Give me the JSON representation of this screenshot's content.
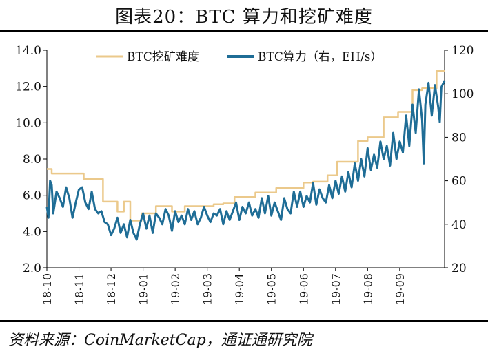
{
  "header": {
    "title": "图表20：BTC 算力和挖矿难度"
  },
  "footer": {
    "source": "资料来源：CoinMarketCap，通证通研究院"
  },
  "chart_data": {
    "type": "line",
    "xlabel": "",
    "ylabel_left": "",
    "ylabel_right": "",
    "x_ticks": [
      "18-10",
      "18-11",
      "18-12",
      "19-01",
      "19-02",
      "19-03",
      "19-04",
      "19-05",
      "19-06",
      "19-07",
      "19-08",
      "19-09"
    ],
    "x_range_months": [
      0,
      12.4
    ],
    "ylim_left": [
      2.0,
      14.0
    ],
    "yticks_left": [
      "2.0",
      "4.0",
      "6.0",
      "8.0",
      "10.0",
      "12.0",
      "14.0"
    ],
    "ylim_right": [
      20,
      120
    ],
    "yticks_right": [
      "20",
      "40",
      "60",
      "80",
      "100",
      "120"
    ],
    "grid": false,
    "legend_position": "top",
    "colors": {
      "difficulty": "#EBC98B",
      "hashrate": "#1F6D96"
    },
    "series": [
      {
        "name": "BTC挖矿难度",
        "axis": "left",
        "step": true,
        "points": [
          [
            0.0,
            7.45
          ],
          [
            0.15,
            7.2
          ],
          [
            1.15,
            6.9
          ],
          [
            1.75,
            5.65
          ],
          [
            2.2,
            5.1
          ],
          [
            2.4,
            5.65
          ],
          [
            2.6,
            4.6
          ],
          [
            2.95,
            5.0
          ],
          [
            3.4,
            5.4
          ],
          [
            3.9,
            5.1
          ],
          [
            4.3,
            5.4
          ],
          [
            5.2,
            5.5
          ],
          [
            5.5,
            5.55
          ],
          [
            5.85,
            5.9
          ],
          [
            6.5,
            6.15
          ],
          [
            7.15,
            6.4
          ],
          [
            8.0,
            6.7
          ],
          [
            8.3,
            6.75
          ],
          [
            8.75,
            7.1
          ],
          [
            9.05,
            7.85
          ],
          [
            9.7,
            9.0
          ],
          [
            10.0,
            9.2
          ],
          [
            10.5,
            10.3
          ],
          [
            10.95,
            10.6
          ],
          [
            11.4,
            11.8
          ],
          [
            11.7,
            11.9
          ],
          [
            12.15,
            12.85
          ],
          [
            12.4,
            12.85
          ]
        ]
      },
      {
        "name": "BTC算力（右，EH/s）",
        "axis": "right",
        "points": [
          [
            0.0,
            48
          ],
          [
            0.05,
            43
          ],
          [
            0.1,
            60
          ],
          [
            0.15,
            58
          ],
          [
            0.2,
            45
          ],
          [
            0.3,
            55
          ],
          [
            0.4,
            52
          ],
          [
            0.5,
            48
          ],
          [
            0.6,
            57
          ],
          [
            0.7,
            52
          ],
          [
            0.8,
            43
          ],
          [
            0.9,
            50
          ],
          [
            1.0,
            56
          ],
          [
            1.1,
            57
          ],
          [
            1.2,
            50
          ],
          [
            1.3,
            47
          ],
          [
            1.4,
            55
          ],
          [
            1.5,
            47
          ],
          [
            1.6,
            45
          ],
          [
            1.7,
            46
          ],
          [
            1.8,
            41
          ],
          [
            1.9,
            40
          ],
          [
            2.0,
            35
          ],
          [
            2.1,
            38
          ],
          [
            2.2,
            43
          ],
          [
            2.3,
            36
          ],
          [
            2.4,
            40
          ],
          [
            2.5,
            34
          ],
          [
            2.6,
            42
          ],
          [
            2.7,
            36
          ],
          [
            2.8,
            33
          ],
          [
            2.9,
            40
          ],
          [
            3.0,
            45
          ],
          [
            3.1,
            38
          ],
          [
            3.2,
            44
          ],
          [
            3.3,
            36
          ],
          [
            3.4,
            45
          ],
          [
            3.5,
            43
          ],
          [
            3.6,
            40
          ],
          [
            3.7,
            47
          ],
          [
            3.8,
            44
          ],
          [
            3.9,
            37
          ],
          [
            4.0,
            46
          ],
          [
            4.1,
            41
          ],
          [
            4.2,
            44
          ],
          [
            4.3,
            40
          ],
          [
            4.4,
            47
          ],
          [
            4.5,
            42
          ],
          [
            4.6,
            46
          ],
          [
            4.7,
            40
          ],
          [
            4.8,
            43
          ],
          [
            4.9,
            48
          ],
          [
            5.0,
            44
          ],
          [
            5.1,
            41
          ],
          [
            5.2,
            45
          ],
          [
            5.3,
            44
          ],
          [
            5.4,
            47
          ],
          [
            5.5,
            40
          ],
          [
            5.6,
            46
          ],
          [
            5.7,
            42
          ],
          [
            5.8,
            46
          ],
          [
            5.9,
            50
          ],
          [
            6.0,
            42
          ],
          [
            6.1,
            48
          ],
          [
            6.2,
            45
          ],
          [
            6.3,
            50
          ],
          [
            6.4,
            44
          ],
          [
            6.5,
            47
          ],
          [
            6.6,
            43
          ],
          [
            6.7,
            52
          ],
          [
            6.8,
            45
          ],
          [
            6.9,
            53
          ],
          [
            7.0,
            44
          ],
          [
            7.1,
            50
          ],
          [
            7.2,
            46
          ],
          [
            7.3,
            42
          ],
          [
            7.4,
            52
          ],
          [
            7.5,
            47
          ],
          [
            7.6,
            45
          ],
          [
            7.7,
            55
          ],
          [
            7.8,
            48
          ],
          [
            7.9,
            55
          ],
          [
            8.0,
            48
          ],
          [
            8.1,
            53
          ],
          [
            8.2,
            50
          ],
          [
            8.3,
            59
          ],
          [
            8.4,
            49
          ],
          [
            8.5,
            56
          ],
          [
            8.6,
            52
          ],
          [
            8.7,
            50
          ],
          [
            8.8,
            58
          ],
          [
            8.9,
            52
          ],
          [
            9.0,
            60
          ],
          [
            9.1,
            54
          ],
          [
            9.2,
            62
          ],
          [
            9.3,
            55
          ],
          [
            9.4,
            64
          ],
          [
            9.5,
            57
          ],
          [
            9.6,
            68
          ],
          [
            9.7,
            60
          ],
          [
            9.8,
            70
          ],
          [
            9.9,
            62
          ],
          [
            10.0,
            75
          ],
          [
            10.1,
            65
          ],
          [
            10.2,
            72
          ],
          [
            10.3,
            66
          ],
          [
            10.4,
            78
          ],
          [
            10.5,
            70
          ],
          [
            10.6,
            76
          ],
          [
            10.7,
            67
          ],
          [
            10.8,
            82
          ],
          [
            10.9,
            70
          ],
          [
            11.0,
            78
          ],
          [
            11.1,
            73
          ],
          [
            11.2,
            90
          ],
          [
            11.3,
            76
          ],
          [
            11.4,
            95
          ],
          [
            11.5,
            82
          ],
          [
            11.6,
            102
          ],
          [
            11.7,
            88
          ],
          [
            11.75,
            68
          ],
          [
            11.8,
            95
          ],
          [
            11.9,
            105
          ],
          [
            12.0,
            90
          ],
          [
            12.1,
            104
          ],
          [
            12.2,
            94
          ],
          [
            12.25,
            87
          ],
          [
            12.3,
            103
          ],
          [
            12.4,
            106
          ]
        ]
      }
    ]
  }
}
